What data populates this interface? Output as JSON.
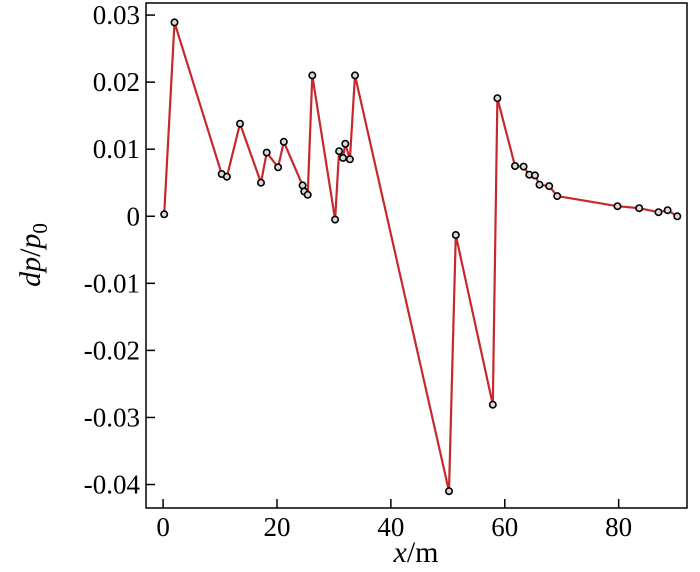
{
  "chart_data": {
    "type": "line",
    "title": "",
    "xlabel_var": "x",
    "xlabel_unit": "/m",
    "ylabel_num": "dp",
    "ylabel_den": "p",
    "ylabel_sub": "0",
    "xlim": [
      -3,
      92
    ],
    "ylim": [
      -0.0435,
      0.0318
    ],
    "xticks": [
      0,
      20,
      40,
      60,
      80
    ],
    "xtick_labels": [
      "0",
      "20",
      "40",
      "60",
      "80"
    ],
    "yticks": [
      0.03,
      0.02,
      0.01,
      0,
      -0.01,
      -0.02,
      -0.03,
      -0.04
    ],
    "ytick_labels": [
      "0.03",
      "0.02",
      "0.01",
      "0",
      "-0.01",
      "-0.02",
      "-0.03",
      "-0.04"
    ],
    "grid": false,
    "legend": "none",
    "line_color": "#c8282d",
    "marker_fill": "#d9d9d9",
    "marker_stroke": "#000000",
    "series": [
      {
        "x": [
          0.2,
          2.0,
          10.3,
          11.2,
          13.5,
          17.2,
          18.2,
          20.2,
          21.2,
          24.5,
          24.8,
          25.4,
          26.2,
          30.2,
          30.9,
          31.6,
          32.0,
          32.8,
          33.7,
          50.2,
          51.4,
          57.9,
          58.7,
          61.8,
          63.3,
          64.3,
          65.3,
          66.1,
          67.8,
          69.2,
          79.8,
          83.6,
          87.0,
          88.6,
          90.3
        ],
        "y": [
          0.0003,
          0.0289,
          0.0063,
          0.0059,
          0.0138,
          0.005,
          0.0095,
          0.0073,
          0.0111,
          0.0046,
          0.0037,
          0.0032,
          0.021,
          -0.0005,
          0.0097,
          0.0087,
          0.0108,
          0.0085,
          0.021,
          -0.041,
          -0.0028,
          -0.0281,
          0.0176,
          0.0075,
          0.0074,
          0.0062,
          0.0061,
          0.0047,
          0.0045,
          0.003,
          0.0015,
          0.0012,
          0.0006,
          0.0009,
          0.0
        ]
      }
    ]
  }
}
